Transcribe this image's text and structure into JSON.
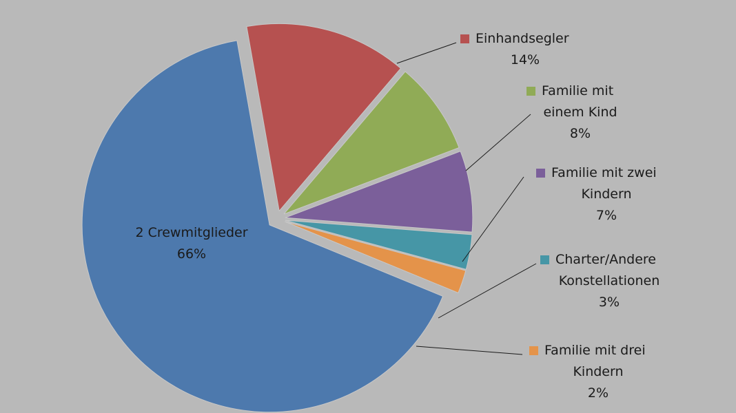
{
  "chart_data": {
    "type": "pie",
    "title": "",
    "slices": [
      {
        "name": "Einhandsegler",
        "value": 14,
        "value_label": "14%",
        "color": "#b65150"
      },
      {
        "name": "Familie mit einem Kind",
        "value": 8,
        "value_label": "8%",
        "color": "#90ab56"
      },
      {
        "name": "Familie mit zwei Kindern",
        "value": 7,
        "value_label": "7%",
        "color": "#7b5f9a"
      },
      {
        "name": "Charter/Andere Konstellationen",
        "value": 3,
        "value_label": "3%",
        "color": "#4696a6"
      },
      {
        "name": "Familie mit drei Kindern",
        "value": 2,
        "value_label": "2%",
        "color": "#e4934a"
      },
      {
        "name": "2 Crewmitglieder",
        "value": 66,
        "value_label": "66%",
        "color": "#4d79ad"
      }
    ],
    "legend": "none",
    "label_placement": "outside-with-leader-lines; largest slice labeled inside"
  }
}
